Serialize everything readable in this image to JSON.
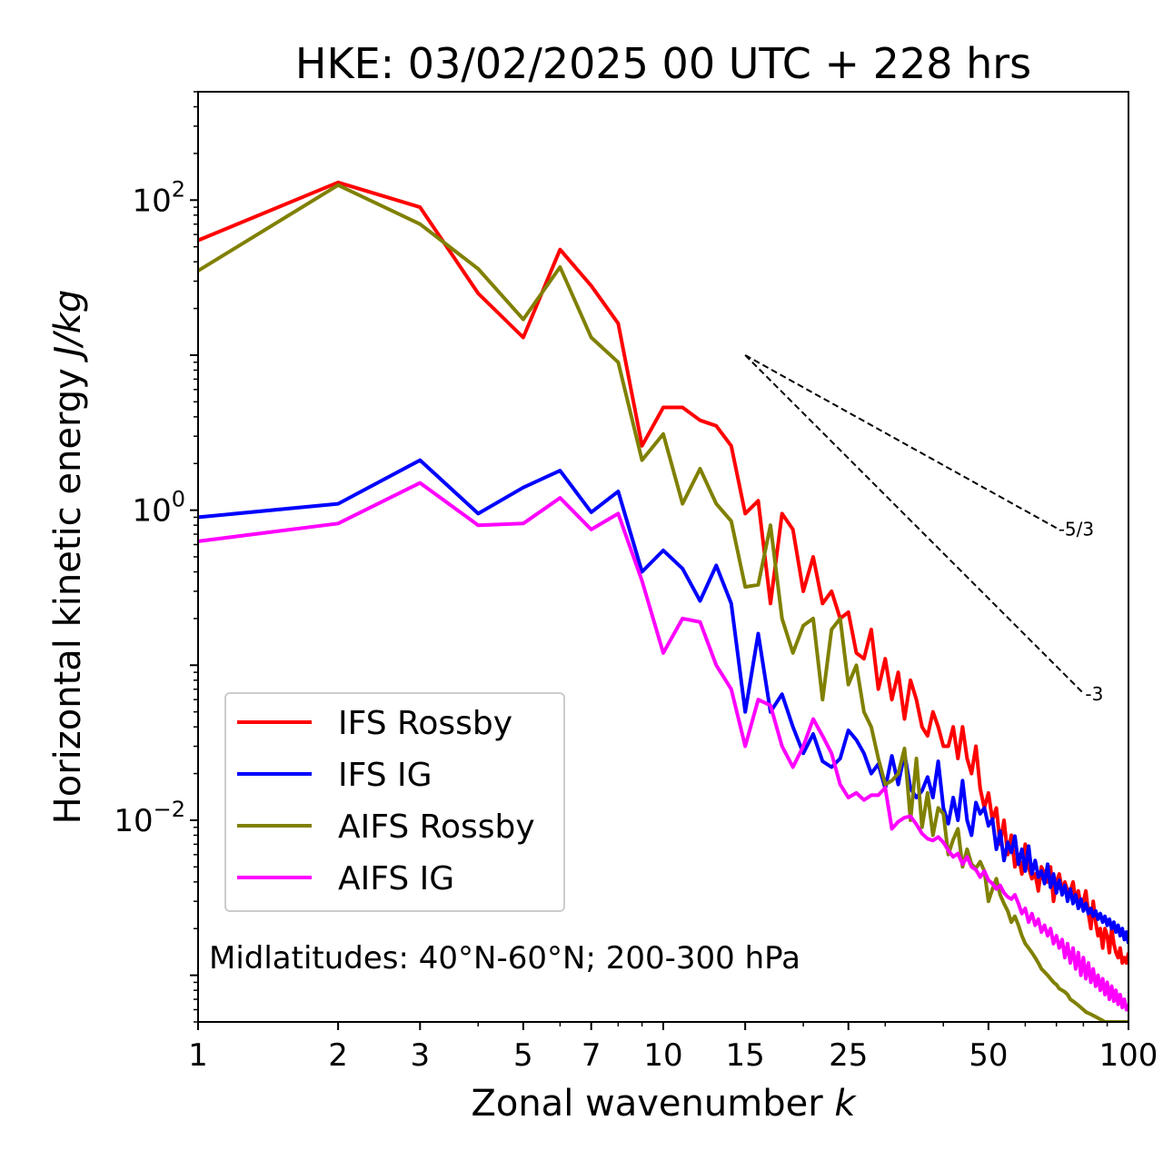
{
  "chart_data": {
    "type": "line",
    "title": "HKE: 03/02/2025 00 UTC + 228 hrs",
    "xlabel_main": "Zonal wavenumber ",
    "xlabel_var": "k",
    "ylabel_main": "Horizontal kinetic energy ",
    "ylabel_var": "J/kg",
    "x_scale": "log",
    "y_scale": "log",
    "xlim": [
      1,
      100
    ],
    "ylim": [
      0.0005,
      500
    ],
    "x_ticks": [
      1,
      2,
      3,
      5,
      7,
      10,
      15,
      25,
      50,
      100
    ],
    "x_tick_labels": [
      "1",
      "2",
      "3",
      "5",
      "7",
      "10",
      "15",
      "25",
      "50",
      "100"
    ],
    "y_ticks": [
      {
        "value": 100,
        "base": "10",
        "exp": "2"
      },
      {
        "value": 1,
        "base": "10",
        "exp": "0"
      },
      {
        "value": 0.01,
        "base": "10",
        "exp": "−2"
      }
    ],
    "grid": false,
    "legend_position": "lower-left",
    "annotation": "Midlatitudes: 40°N-60°N; 200-300 hPa",
    "reference_lines": [
      {
        "label": "-5/3",
        "slope": -1.6667,
        "k_start": 15,
        "k_end": 70,
        "e_start": 10
      },
      {
        "label": "-3",
        "slope": -3,
        "k_start": 15,
        "k_end": 80,
        "e_start": 10
      }
    ],
    "series": [
      {
        "name": "IFS Rossby",
        "color": "#ff0000",
        "values": [
          55,
          130,
          90,
          25,
          13,
          48,
          28,
          16,
          2.6,
          4.6,
          4.6,
          3.8,
          3.5,
          2.6,
          0.95,
          1.15,
          0.25,
          0.95,
          0.75,
          0.3,
          0.5,
          0.25,
          0.3,
          0.2,
          0.22,
          0.12,
          0.11,
          0.17,
          0.07,
          0.11,
          0.06,
          0.09,
          0.045,
          0.08,
          0.06,
          0.04,
          0.035,
          0.05,
          0.04,
          0.03,
          0.03,
          0.04,
          0.025,
          0.04,
          0.025,
          0.02,
          0.03,
          0.016,
          0.012,
          0.015,
          0.01,
          0.012,
          0.007,
          0.01,
          0.006,
          0.008,
          0.005,
          0.006,
          0.0045,
          0.007,
          0.005,
          0.0042,
          0.0045,
          0.0035,
          0.005,
          0.0045,
          0.004,
          0.005,
          0.003,
          0.004,
          0.0045,
          0.0035,
          0.004,
          0.0035,
          0.0035,
          0.004,
          0.003,
          0.0035,
          0.0028,
          0.003,
          0.0035,
          0.0025,
          0.002,
          0.003,
          0.0022,
          0.0018,
          0.002,
          0.0015,
          0.002,
          0.0018,
          0.0014,
          0.002,
          0.0016,
          0.0014,
          0.0013,
          0.0015,
          0.0012,
          0.0013,
          0.0012,
          0.0014
        ]
      },
      {
        "name": "IFS IG",
        "color": "#0000ff",
        "values": [
          0.9,
          1.1,
          2.1,
          0.95,
          1.4,
          1.8,
          0.97,
          1.32,
          0.4,
          0.55,
          0.42,
          0.26,
          0.44,
          0.25,
          0.05,
          0.16,
          0.05,
          0.065,
          0.04,
          0.027,
          0.036,
          0.024,
          0.022,
          0.025,
          0.038,
          0.033,
          0.027,
          0.02,
          0.023,
          0.016,
          0.026,
          0.017,
          0.027,
          0.016,
          0.014,
          0.0155,
          0.019,
          0.014,
          0.024,
          0.012,
          0.0095,
          0.014,
          0.01,
          0.018,
          0.01,
          0.008,
          0.013,
          0.011,
          0.012,
          0.0092,
          0.0102,
          0.0065,
          0.0085,
          0.0055,
          0.0072,
          0.0062,
          0.0079,
          0.0052,
          0.0065,
          0.0047,
          0.0068,
          0.0045,
          0.0055,
          0.0043,
          0.0047,
          0.0039,
          0.0052,
          0.0037,
          0.0045,
          0.0034,
          0.0041,
          0.0033,
          0.0038,
          0.003,
          0.0036,
          0.0029,
          0.0033,
          0.0027,
          0.0031,
          0.0026,
          0.0029,
          0.0025,
          0.0027,
          0.0024,
          0.0026,
          0.0023,
          0.0025,
          0.0022,
          0.0024,
          0.0021,
          0.0023,
          0.002,
          0.0022,
          0.0019,
          0.0021,
          0.0018,
          0.002,
          0.0017,
          0.0019,
          0.0016
        ]
      },
      {
        "name": "AIFS Rossby",
        "color": "#808000",
        "values": [
          35,
          125,
          70,
          36,
          17,
          37,
          13,
          9,
          2.1,
          3.1,
          1.1,
          1.85,
          1.1,
          0.85,
          0.32,
          0.33,
          0.8,
          0.2,
          0.12,
          0.18,
          0.2,
          0.06,
          0.17,
          0.2,
          0.075,
          0.1,
          0.05,
          0.04,
          0.025,
          0.017,
          0.018,
          0.02,
          0.029,
          0.01,
          0.025,
          0.009,
          0.015,
          0.008,
          0.012,
          0.011,
          0.006,
          0.0075,
          0.0088,
          0.005,
          0.0065,
          0.0052,
          0.0049,
          0.0054,
          0.0047,
          0.003,
          0.0036,
          0.0042,
          0.0033,
          0.0029,
          0.0026,
          0.0022,
          0.0024,
          0.0021,
          0.0018,
          0.0016,
          0.0015,
          0.0014,
          0.0013,
          0.0012,
          0.0011,
          0.00105,
          0.001,
          0.00095,
          0.0009,
          0.00087,
          0.00082,
          0.0008,
          0.00078,
          0.00075,
          0.0007,
          0.00068,
          0.00066,
          0.00064,
          0.00062,
          0.0006,
          0.00058,
          0.00057,
          0.00056,
          0.00055,
          0.00054,
          0.00053,
          0.00052,
          0.00051,
          0.0005,
          0.0005,
          0.0005,
          0.0005,
          0.0005,
          0.0005,
          0.0005,
          0.0005,
          0.0005,
          0.0005,
          0.0005,
          0.0005
        ]
      },
      {
        "name": "AIFS IG",
        "color": "#ff00ff",
        "values": [
          0.63,
          0.82,
          1.5,
          0.8,
          0.82,
          1.2,
          0.75,
          0.95,
          0.35,
          0.12,
          0.2,
          0.19,
          0.1,
          0.07,
          0.03,
          0.06,
          0.055,
          0.03,
          0.022,
          0.03,
          0.045,
          0.035,
          0.027,
          0.017,
          0.014,
          0.015,
          0.0135,
          0.0145,
          0.0145,
          0.0162,
          0.0088,
          0.0098,
          0.0104,
          0.0106,
          0.0094,
          0.0082,
          0.0076,
          0.0074,
          0.0078,
          0.0072,
          0.0064,
          0.0058,
          0.0061,
          0.0052,
          0.0058,
          0.005,
          0.0048,
          0.0043,
          0.0047,
          0.0041,
          0.0039,
          0.0036,
          0.0038,
          0.0034,
          0.0032,
          0.0031,
          0.0033,
          0.0029,
          0.0025,
          0.0027,
          0.0022,
          0.0025,
          0.0021,
          0.0023,
          0.0019,
          0.0021,
          0.0018,
          0.002,
          0.0016,
          0.0018,
          0.0015,
          0.0017,
          0.0013,
          0.0016,
          0.0012,
          0.0015,
          0.0011,
          0.0014,
          0.001,
          0.0013,
          0.00095,
          0.0012,
          0.0009,
          0.0011,
          0.00085,
          0.001,
          0.0008,
          0.00095,
          0.00075,
          0.0009,
          0.0007,
          0.00085,
          0.00068,
          0.0008,
          0.00065,
          0.00075,
          0.00062,
          0.0007,
          0.0006,
          0.00065
        ]
      }
    ]
  }
}
